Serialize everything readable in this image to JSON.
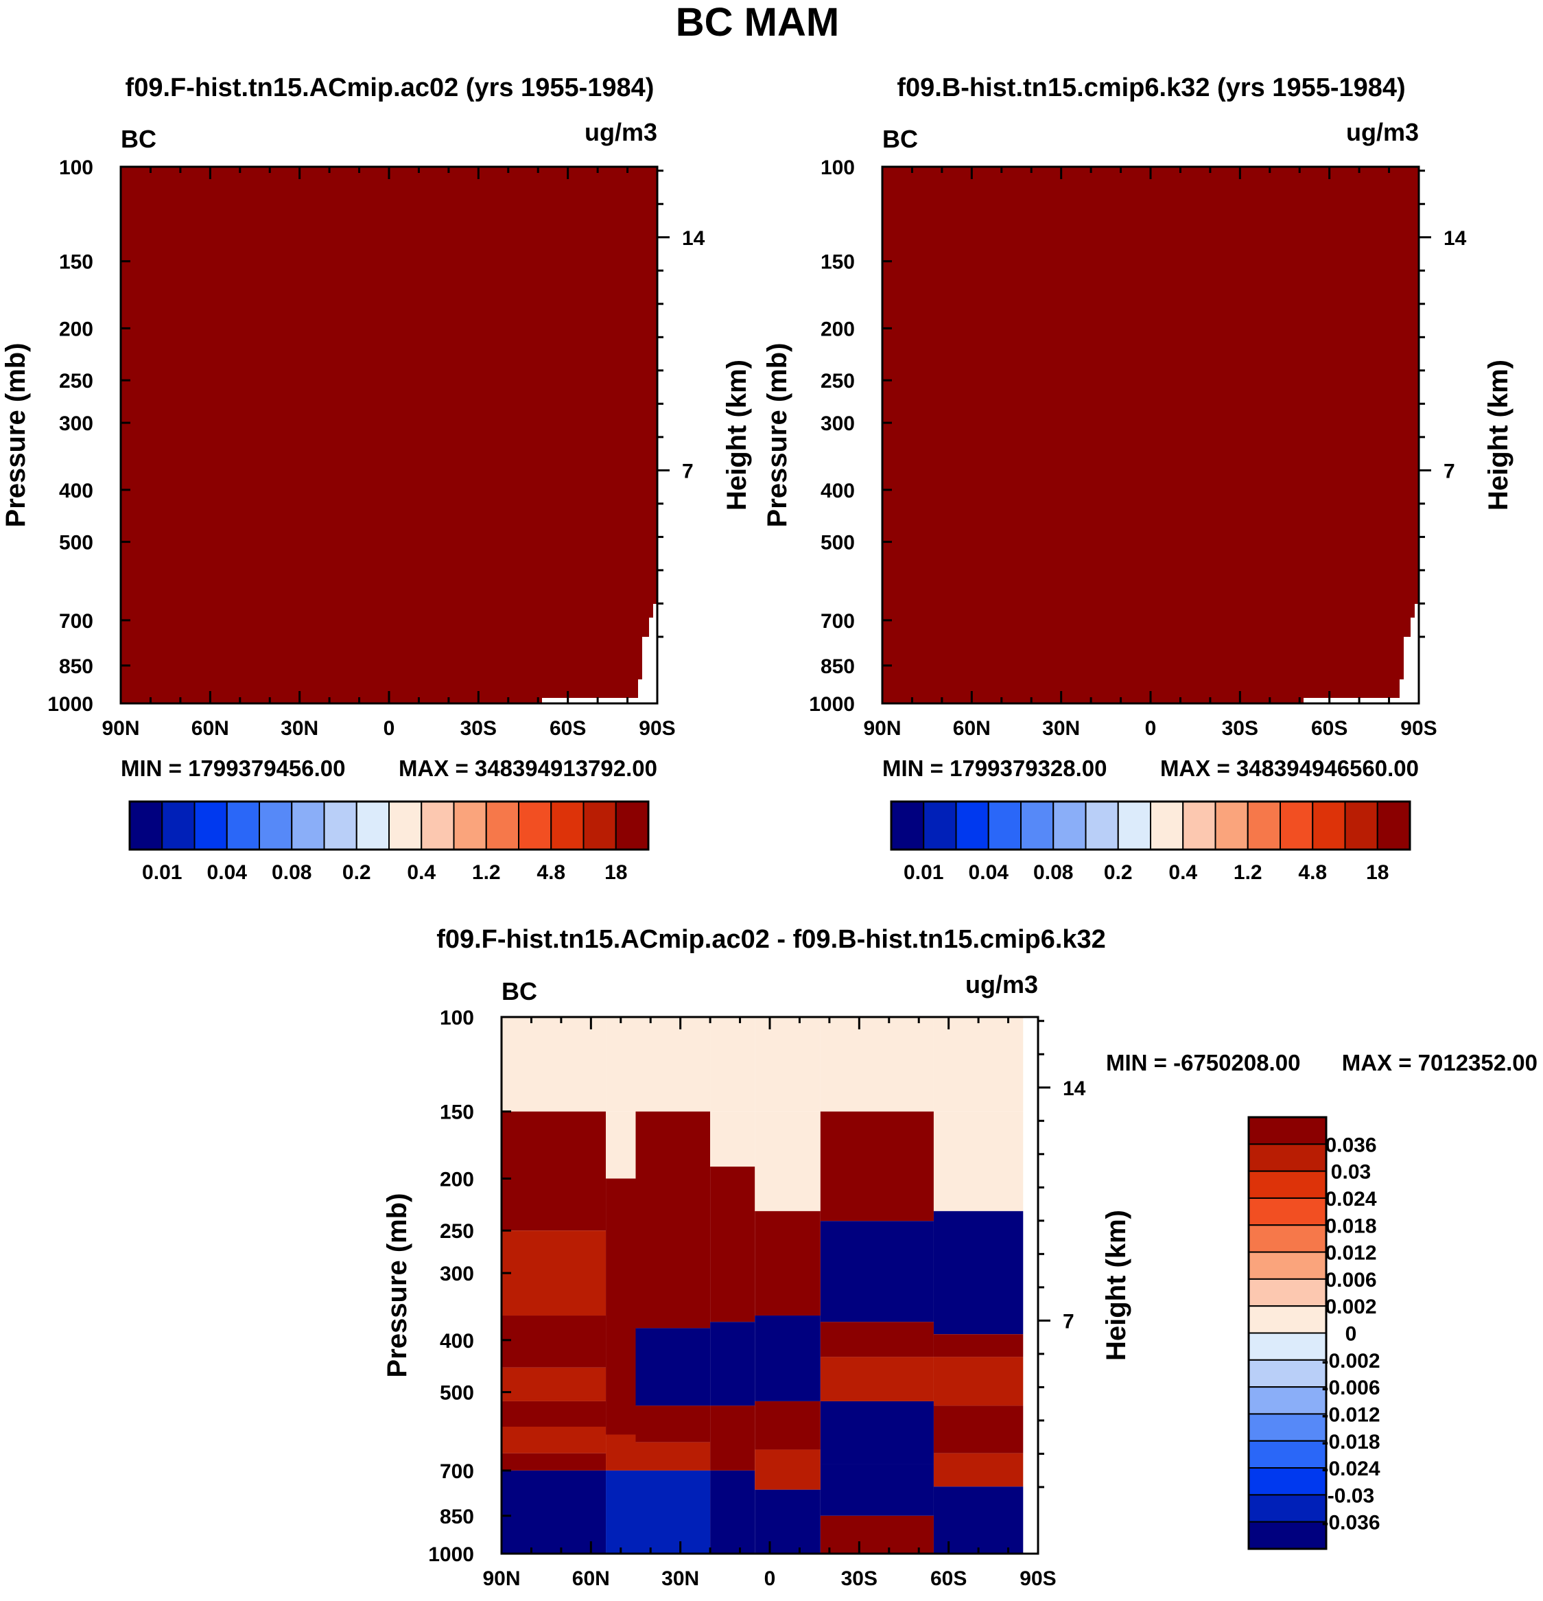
{
  "figure": {
    "title": "BC MAM"
  },
  "chart_data": [
    {
      "type": "contour",
      "panel": "model1",
      "title": "f09.F-hist.tn15.ACmip.ac02 (yrs 1955-1984)",
      "left_label": "BC",
      "units": "ug/m3",
      "ylabel": "Pressure (mb)",
      "ylabel_right": "Height (km)",
      "xticks": [
        "90N",
        "60N",
        "30N",
        "0",
        "30S",
        "60S",
        "90S"
      ],
      "yticks": [
        "100",
        "150",
        "200",
        "250",
        "300",
        "400",
        "500",
        "700",
        "850",
        "1000"
      ],
      "yticks_right": [
        "14",
        "7"
      ],
      "min_label": "MIN = 1799379456.00",
      "max_label": "MAX = 348394913792.00",
      "dominant_level": ">18"
    },
    {
      "type": "contour",
      "panel": "model2",
      "title": "f09.B-hist.tn15.cmip6.k32 (yrs 1955-1984)",
      "left_label": "BC",
      "units": "ug/m3",
      "ylabel": "Pressure (mb)",
      "ylabel_right": "Height (km)",
      "xticks": [
        "90N",
        "60N",
        "30N",
        "0",
        "30S",
        "60S",
        "90S"
      ],
      "yticks": [
        "100",
        "150",
        "200",
        "250",
        "300",
        "400",
        "500",
        "700",
        "850",
        "1000"
      ],
      "yticks_right": [
        "14",
        "7"
      ],
      "min_label": "MIN = 1799379328.00",
      "max_label": "MAX = 348394946560.00",
      "dominant_level": ">18"
    },
    {
      "type": "contour",
      "panel": "difference",
      "title": "f09.F-hist.tn15.ACmip.ac02 - f09.B-hist.tn15.cmip6.k32",
      "left_label": "BC",
      "units": "ug/m3",
      "ylabel": "Pressure (mb)",
      "ylabel_right": "Height (km)",
      "xticks": [
        "90N",
        "60N",
        "30N",
        "0",
        "30S",
        "60S",
        "90S"
      ],
      "yticks": [
        "100",
        "150",
        "200",
        "250",
        "300",
        "400",
        "500",
        "700",
        "850",
        "1000"
      ],
      "yticks_right": [
        "14",
        "7"
      ],
      "min_label": "MIN = -6750208.00",
      "max_label": "MAX = 7012352.00"
    }
  ],
  "colorbars": {
    "absolute": {
      "colors": [
        "#00007f",
        "#0020b8",
        "#0039ef",
        "#2a67f8",
        "#5689f8",
        "#8aaef8",
        "#b9cff8",
        "#dcebfb",
        "#fdebdc",
        "#fcc8b0",
        "#faa47c",
        "#f6784a",
        "#f24f22",
        "#dd3309",
        "#b91d03",
        "#8b0000"
      ],
      "labels": [
        "0.01",
        "0.04",
        "0.08",
        "0.2",
        "0.4",
        "1.2",
        "4.8",
        "18"
      ]
    },
    "difference": {
      "colors": [
        "#8b0000",
        "#b91d03",
        "#dd3309",
        "#f24f22",
        "#f6784a",
        "#faa47c",
        "#fcc8b0",
        "#fdebdc",
        "#dcebfb",
        "#b9cff8",
        "#8aaef8",
        "#5689f8",
        "#2a67f8",
        "#0039ef",
        "#0020b8",
        "#00007f"
      ],
      "labels": [
        "0.036",
        "0.03",
        "0.024",
        "0.018",
        "0.012",
        "0.006",
        "0.002",
        "0",
        "-0.002",
        "-0.006",
        "-0.012",
        "-0.018",
        "-0.024",
        "-0.03",
        "-0.036"
      ]
    }
  },
  "diff_field": {
    "columns": [
      {
        "from": "90N",
        "to": "55N",
        "bands": [
          [
            "100",
            "150",
            "0.002"
          ],
          [
            "150",
            "250",
            "0.036"
          ],
          [
            "250",
            "360",
            "0.03"
          ],
          [
            "360",
            "450",
            "0.036"
          ],
          [
            "450",
            "520",
            "0.03"
          ],
          [
            "520",
            "580",
            "0.036"
          ],
          [
            "580",
            "650",
            "0.03"
          ],
          [
            "650",
            "700",
            "0.036"
          ],
          [
            "700",
            "1000",
            "-0.036"
          ]
        ]
      },
      {
        "from": "55N",
        "to": "45N",
        "bands": [
          [
            "100",
            "150",
            "0.002"
          ],
          [
            "150",
            "200",
            "0"
          ],
          [
            "200",
            "600",
            "0.036"
          ],
          [
            "600",
            "700",
            "0.03"
          ],
          [
            "700",
            "1000",
            "-0.03"
          ]
        ]
      },
      {
        "from": "45N",
        "to": "20N",
        "bands": [
          [
            "100",
            "150",
            "0.002"
          ],
          [
            "150",
            "380",
            "0.036"
          ],
          [
            "380",
            "530",
            "-0.036"
          ],
          [
            "530",
            "620",
            "0.036"
          ],
          [
            "620",
            "700",
            "0.03"
          ],
          [
            "700",
            "1000",
            "-0.03"
          ]
        ]
      },
      {
        "from": "20N",
        "to": "5N",
        "bands": [
          [
            "100",
            "150",
            "0.002"
          ],
          [
            "150",
            "190",
            "0"
          ],
          [
            "190",
            "370",
            "0.036"
          ],
          [
            "370",
            "530",
            "-0.036"
          ],
          [
            "530",
            "700",
            "0.036"
          ],
          [
            "700",
            "1000",
            "-0.036"
          ]
        ]
      },
      {
        "from": "5N",
        "to": "17S",
        "bands": [
          [
            "100",
            "150",
            "0.002"
          ],
          [
            "150",
            "230",
            "0"
          ],
          [
            "230",
            "360",
            "0.036"
          ],
          [
            "360",
            "520",
            "-0.036"
          ],
          [
            "520",
            "640",
            "0.036"
          ],
          [
            "640",
            "760",
            "0.03"
          ],
          [
            "760",
            "1000",
            "-0.036"
          ]
        ]
      },
      {
        "from": "17S",
        "to": "55S",
        "bands": [
          [
            "100",
            "150",
            "0.002"
          ],
          [
            "150",
            "240",
            "0.036"
          ],
          [
            "240",
            "370",
            "-0.036"
          ],
          [
            "370",
            "430",
            "0.036"
          ],
          [
            "430",
            "520",
            "0.03"
          ],
          [
            "520",
            "680",
            "-0.036"
          ],
          [
            "680",
            "850",
            "-0.036"
          ],
          [
            "850",
            "1000",
            "0.036"
          ]
        ]
      },
      {
        "from": "55S",
        "to": "85S",
        "bands": [
          [
            "100",
            "150",
            "0.002"
          ],
          [
            "150",
            "230",
            "0"
          ],
          [
            "230",
            "390",
            "-0.036"
          ],
          [
            "390",
            "430",
            "0.036"
          ],
          [
            "430",
            "530",
            "0.03"
          ],
          [
            "530",
            "650",
            "0.036"
          ],
          [
            "650",
            "750",
            "0.03"
          ],
          [
            "750",
            "1000",
            "-0.036"
          ]
        ]
      }
    ]
  }
}
